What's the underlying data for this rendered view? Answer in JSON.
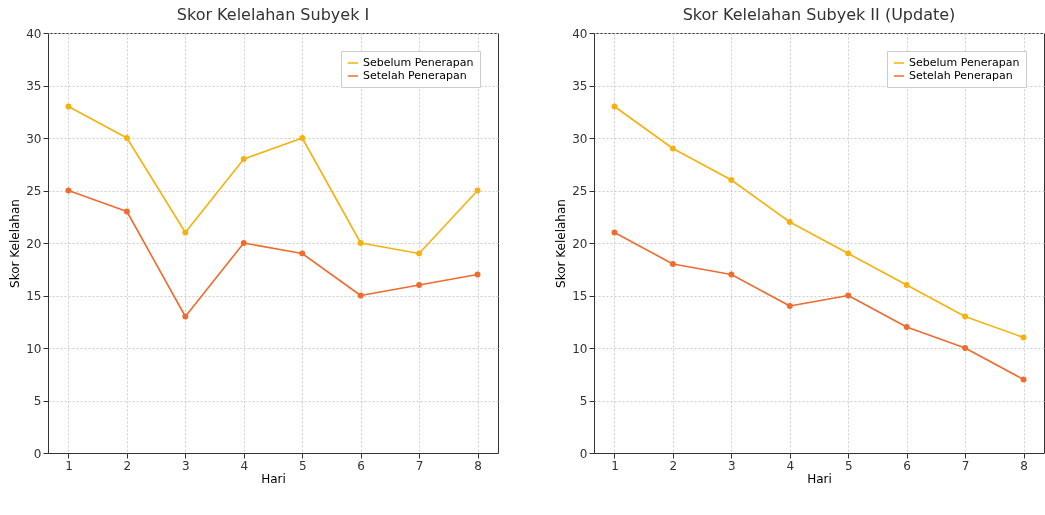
{
  "chart_data": [
    {
      "type": "line",
      "title": "Skor Kelelahan Subyek I",
      "xlabel": "Hari",
      "ylabel": "Skor Kelelahan",
      "x": [
        1,
        2,
        3,
        4,
        5,
        6,
        7,
        8
      ],
      "xlim": [
        0.65,
        8.35
      ],
      "xticks": [
        1,
        2,
        3,
        4,
        5,
        6,
        7,
        8
      ],
      "ylim": [
        0,
        40
      ],
      "yticks": [
        0,
        5,
        10,
        15,
        20,
        25,
        30,
        35,
        40
      ],
      "grid": true,
      "legend": "top right",
      "marker": "circle",
      "series": [
        {
          "name": "Sebelum Penerapan",
          "color": "#f5b20f",
          "values": [
            33,
            30,
            21,
            28,
            30,
            20,
            19,
            25
          ]
        },
        {
          "name": "Setelah Penerapan",
          "color": "#ee6c2e",
          "values": [
            25,
            23,
            13,
            20,
            19,
            15,
            16,
            17
          ]
        }
      ]
    },
    {
      "type": "line",
      "title": "Skor Kelelahan Subyek II (Update)",
      "xlabel": "Hari",
      "ylabel": "Skor Kelelahan",
      "x": [
        1,
        2,
        3,
        4,
        5,
        6,
        7,
        8
      ],
      "xlim": [
        0.65,
        8.35
      ],
      "xticks": [
        1,
        2,
        3,
        4,
        5,
        6,
        7,
        8
      ],
      "ylim": [
        0,
        40
      ],
      "yticks": [
        0,
        5,
        10,
        15,
        20,
        25,
        30,
        35,
        40
      ],
      "grid": true,
      "legend": "top right",
      "marker": "circle",
      "series": [
        {
          "name": "Sebelum Penerapan",
          "color": "#f5b20f",
          "values": [
            33,
            29,
            26,
            22,
            19,
            16,
            13,
            11
          ]
        },
        {
          "name": "Setelah Penerapan",
          "color": "#ee6c2e",
          "values": [
            21,
            18,
            17,
            14,
            15,
            12,
            10,
            7
          ]
        }
      ]
    }
  ]
}
